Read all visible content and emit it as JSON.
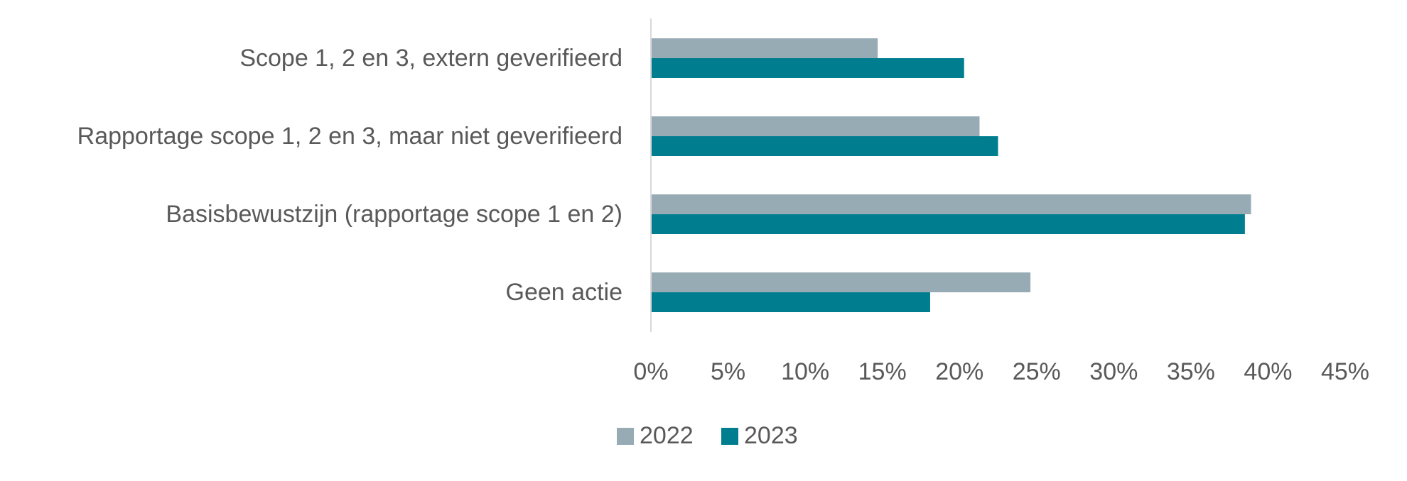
{
  "chart_data": {
    "type": "bar",
    "orientation": "horizontal",
    "title": "",
    "xlabel": "",
    "ylabel": "",
    "categories": [
      "Scope 1, 2 en 3, extern geverifieerd",
      "Rapportage scope 1, 2 en 3, maar niet geverifieerd",
      "Basisbewustzijn (rapportage scope 1 en 2)",
      "Geen actie"
    ],
    "series": [
      {
        "name": "2022",
        "color": "#97abb5",
        "values": [
          14.7,
          21.3,
          38.9,
          24.6
        ]
      },
      {
        "name": "2023",
        "color": "#007e8f",
        "values": [
          20.3,
          22.5,
          38.5,
          18.1
        ]
      }
    ],
    "xlim": [
      0,
      45
    ],
    "xticks": [
      0,
      5,
      10,
      15,
      20,
      25,
      30,
      35,
      40,
      45
    ],
    "xtick_labels": [
      "0%",
      "5%",
      "10%",
      "15%",
      "20%",
      "25%",
      "30%",
      "35%",
      "40%",
      "45%"
    ],
    "grid": false,
    "legend": "bottom-center"
  }
}
